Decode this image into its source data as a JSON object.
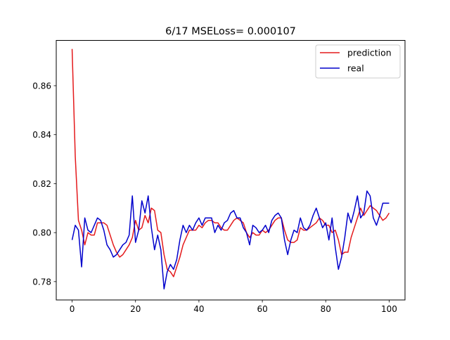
{
  "chart_data": {
    "type": "line",
    "title": "6/17 MSELoss= 0.000107",
    "xlabel": "",
    "ylabel": "",
    "xlim": [
      -5,
      105
    ],
    "ylim": [
      0.7725,
      0.8785
    ],
    "x_ticks": [
      0,
      20,
      40,
      60,
      80,
      100
    ],
    "x_tick_labels": [
      "0",
      "20",
      "40",
      "60",
      "80",
      "100"
    ],
    "y_ticks": [
      0.78,
      0.8,
      0.82,
      0.84,
      0.86
    ],
    "y_tick_labels": [
      "0.78",
      "0.80",
      "0.82",
      "0.84",
      "0.86"
    ],
    "grid": false,
    "legend_position": "top-right",
    "x": [
      0,
      1,
      2,
      3,
      4,
      5,
      6,
      7,
      8,
      9,
      10,
      11,
      12,
      13,
      14,
      15,
      16,
      17,
      18,
      19,
      20,
      21,
      22,
      23,
      24,
      25,
      26,
      27,
      28,
      29,
      30,
      31,
      32,
      33,
      34,
      35,
      36,
      37,
      38,
      39,
      40,
      41,
      42,
      43,
      44,
      45,
      46,
      47,
      48,
      49,
      50,
      51,
      52,
      53,
      54,
      55,
      56,
      57,
      58,
      59,
      60,
      61,
      62,
      63,
      64,
      65,
      66,
      67,
      68,
      69,
      70,
      71,
      72,
      73,
      74,
      75,
      76,
      77,
      78,
      79,
      80,
      81,
      82,
      83,
      84,
      85,
      86,
      87,
      88,
      89,
      90,
      91,
      92,
      93,
      94,
      95,
      96,
      97,
      98,
      99,
      100
    ],
    "series": [
      {
        "name": "prediction",
        "color": "#e41a1c",
        "values": [
          0.875,
          0.831,
          0.805,
          0.801,
          0.795,
          0.8,
          0.799,
          0.799,
          0.804,
          0.804,
          0.804,
          0.803,
          0.799,
          0.795,
          0.792,
          0.79,
          0.791,
          0.793,
          0.795,
          0.798,
          0.805,
          0.801,
          0.802,
          0.807,
          0.804,
          0.81,
          0.809,
          0.801,
          0.8,
          0.791,
          0.785,
          0.784,
          0.782,
          0.786,
          0.79,
          0.795,
          0.798,
          0.801,
          0.801,
          0.801,
          0.803,
          0.802,
          0.804,
          0.805,
          0.805,
          0.804,
          0.804,
          0.802,
          0.801,
          0.801,
          0.803,
          0.805,
          0.806,
          0.805,
          0.804,
          0.8,
          0.798,
          0.8,
          0.799,
          0.799,
          0.801,
          0.8,
          0.801,
          0.803,
          0.805,
          0.806,
          0.806,
          0.801,
          0.797,
          0.796,
          0.796,
          0.797,
          0.802,
          0.801,
          0.801,
          0.802,
          0.803,
          0.804,
          0.806,
          0.805,
          0.803,
          0.803,
          0.8,
          0.801,
          0.797,
          0.791,
          0.792,
          0.792,
          0.798,
          0.802,
          0.806,
          0.81,
          0.807,
          0.809,
          0.811,
          0.81,
          0.809,
          0.807,
          0.805,
          0.806,
          0.808
        ]
      },
      {
        "name": "real",
        "color": "#0000cc",
        "values": [
          0.797,
          0.803,
          0.801,
          0.786,
          0.806,
          0.801,
          0.8,
          0.803,
          0.806,
          0.805,
          0.801,
          0.795,
          0.793,
          0.79,
          0.791,
          0.793,
          0.795,
          0.796,
          0.799,
          0.815,
          0.796,
          0.801,
          0.813,
          0.808,
          0.815,
          0.802,
          0.793,
          0.799,
          0.793,
          0.777,
          0.784,
          0.787,
          0.785,
          0.789,
          0.797,
          0.803,
          0.8,
          0.803,
          0.801,
          0.804,
          0.806,
          0.803,
          0.806,
          0.806,
          0.806,
          0.8,
          0.803,
          0.801,
          0.804,
          0.805,
          0.808,
          0.809,
          0.806,
          0.806,
          0.802,
          0.8,
          0.795,
          0.803,
          0.802,
          0.8,
          0.801,
          0.803,
          0.8,
          0.805,
          0.807,
          0.808,
          0.806,
          0.797,
          0.791,
          0.797,
          0.801,
          0.8,
          0.806,
          0.802,
          0.801,
          0.803,
          0.807,
          0.81,
          0.806,
          0.802,
          0.804,
          0.797,
          0.806,
          0.794,
          0.785,
          0.79,
          0.798,
          0.808,
          0.804,
          0.809,
          0.815,
          0.806,
          0.808,
          0.817,
          0.815,
          0.806,
          0.803,
          0.807,
          0.812,
          0.812,
          0.812
        ]
      }
    ]
  }
}
